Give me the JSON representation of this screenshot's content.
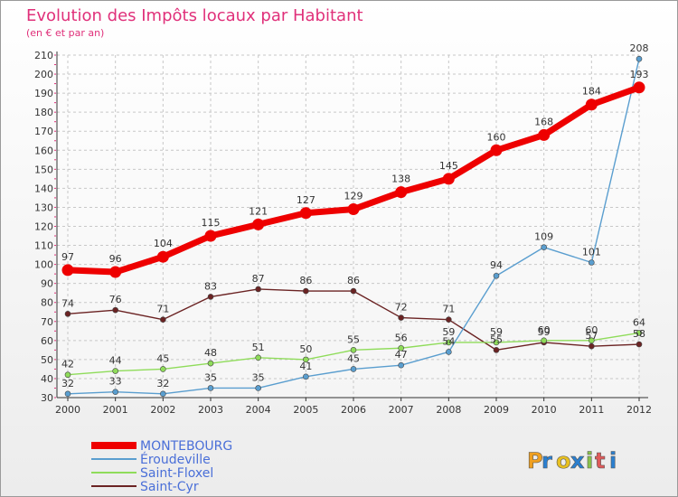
{
  "chart_data": {
    "type": "line",
    "title": "Evolution des Impôts locaux par Habitant",
    "subtitle": "(en € et par an)",
    "xlabel": "",
    "ylabel": "",
    "x": [
      "2000",
      "2001",
      "2002",
      "2003",
      "2004",
      "2005",
      "2006",
      "2007",
      "2008",
      "2009",
      "2010",
      "2011",
      "2012"
    ],
    "ylim": [
      30,
      210
    ],
    "yticks": [
      30,
      40,
      50,
      60,
      70,
      80,
      90,
      100,
      110,
      120,
      130,
      140,
      150,
      160,
      170,
      180,
      190,
      200,
      210
    ],
    "grid": true,
    "legend_position": "bottom-left",
    "series": [
      {
        "name": "MONTEBOURG",
        "color": "#ee0000",
        "values": [
          97,
          96,
          104,
          115,
          121,
          127,
          129,
          138,
          145,
          160,
          168,
          184,
          193
        ]
      },
      {
        "name": "Éroudeville",
        "color": "#5a9ecf",
        "values": [
          32,
          33,
          32,
          35,
          35,
          41,
          45,
          47,
          54,
          94,
          109,
          101,
          208
        ]
      },
      {
        "name": "Saint-Floxel",
        "color": "#8fdc5a",
        "values": [
          42,
          44,
          45,
          48,
          51,
          50,
          55,
          56,
          59,
          59,
          60,
          60,
          64
        ]
      },
      {
        "name": "Saint-Cyr",
        "color": "#6b2323",
        "values": [
          74,
          76,
          71,
          83,
          87,
          86,
          86,
          72,
          71,
          55,
          59,
          57,
          58
        ]
      }
    ],
    "data_labels": [
      [
        "97",
        "96",
        "104",
        "115",
        "121",
        "127",
        "129",
        "138",
        "145",
        "160",
        "168",
        "184",
        "193"
      ],
      [
        "32",
        "33",
        "32",
        "35",
        "35",
        "41",
        "45",
        "47",
        "54",
        "94",
        "109",
        "101",
        "208"
      ],
      [
        "42",
        "44",
        "45",
        "48",
        "51",
        "50",
        "55",
        "56",
        "59",
        "59",
        "60",
        "60",
        "64"
      ],
      [
        "74",
        "76",
        "71",
        "83",
        "87",
        "86",
        "86",
        "72",
        "71",
        "55",
        "59",
        "57",
        "58"
      ]
    ]
  },
  "legend_text_color": "#4a6fd8",
  "logo": {
    "text": "Proxiti",
    "letters": [
      "P",
      "r",
      "o",
      "x",
      "i",
      "t",
      "i"
    ],
    "colors": [
      "#f0a020",
      "#2a7fd0",
      "#e8c020",
      "#2a7fd0",
      "#8bc34a",
      "#e05a5a",
      "#2a7fd0"
    ]
  }
}
